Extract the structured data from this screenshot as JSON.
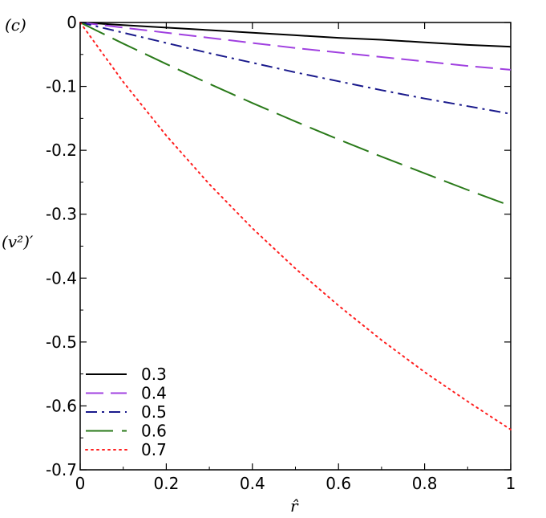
{
  "chart_data": {
    "type": "line",
    "panel_label": "(c)",
    "xlabel": "r̂",
    "ylabel": "(v²)′",
    "xlim": [
      0,
      1
    ],
    "ylim": [
      -0.7,
      0
    ],
    "x_ticks": [
      {
        "value": 0,
        "label": "0"
      },
      {
        "value": 0.2,
        "label": "0.2"
      },
      {
        "value": 0.4,
        "label": "0.4"
      },
      {
        "value": 0.6,
        "label": "0.6"
      },
      {
        "value": 0.8,
        "label": "0.8"
      },
      {
        "value": 1,
        "label": "1"
      }
    ],
    "y_ticks": [
      {
        "value": 0,
        "label": "0"
      },
      {
        "value": -0.1,
        "label": "-0.1"
      },
      {
        "value": -0.2,
        "label": "-0.2"
      },
      {
        "value": -0.3,
        "label": "-0.3"
      },
      {
        "value": -0.4,
        "label": "-0.4"
      },
      {
        "value": -0.5,
        "label": "-0.5"
      },
      {
        "value": -0.6,
        "label": "-0.6"
      },
      {
        "value": -0.7,
        "label": "-0.7"
      }
    ],
    "grid": false,
    "legend_position": "bottom-left",
    "x": [
      0,
      0.1,
      0.2,
      0.3,
      0.4,
      0.5,
      0.6,
      0.7,
      0.8,
      0.9,
      1.0
    ],
    "series": [
      {
        "name": "0.3",
        "color": "#000000",
        "dash": "solid",
        "values": [
          0,
          -0.004,
          -0.008,
          -0.012,
          -0.016,
          -0.02,
          -0.024,
          -0.027,
          -0.031,
          -0.035,
          -0.038
        ]
      },
      {
        "name": "0.4",
        "color": "#a040e0",
        "dash": "dash",
        "values": [
          0,
          -0.008,
          -0.016,
          -0.024,
          -0.032,
          -0.04,
          -0.047,
          -0.054,
          -0.061,
          -0.068,
          -0.074
        ]
      },
      {
        "name": "0.5",
        "color": "#1a1a8c",
        "dash": "dashdot",
        "values": [
          0,
          -0.016,
          -0.032,
          -0.048,
          -0.063,
          -0.078,
          -0.092,
          -0.106,
          -0.119,
          -0.131,
          -0.143
        ]
      },
      {
        "name": "0.6",
        "color": "#2a7a1a",
        "dash": "longdash",
        "values": [
          0,
          -0.033,
          -0.065,
          -0.096,
          -0.126,
          -0.155,
          -0.183,
          -0.21,
          -0.236,
          -0.262,
          -0.287
        ]
      },
      {
        "name": "0.7",
        "color": "#ff2020",
        "dash": "dot",
        "values": [
          0,
          -0.093,
          -0.177,
          -0.253,
          -0.322,
          -0.385,
          -0.443,
          -0.497,
          -0.547,
          -0.593,
          -0.637
        ]
      }
    ]
  }
}
